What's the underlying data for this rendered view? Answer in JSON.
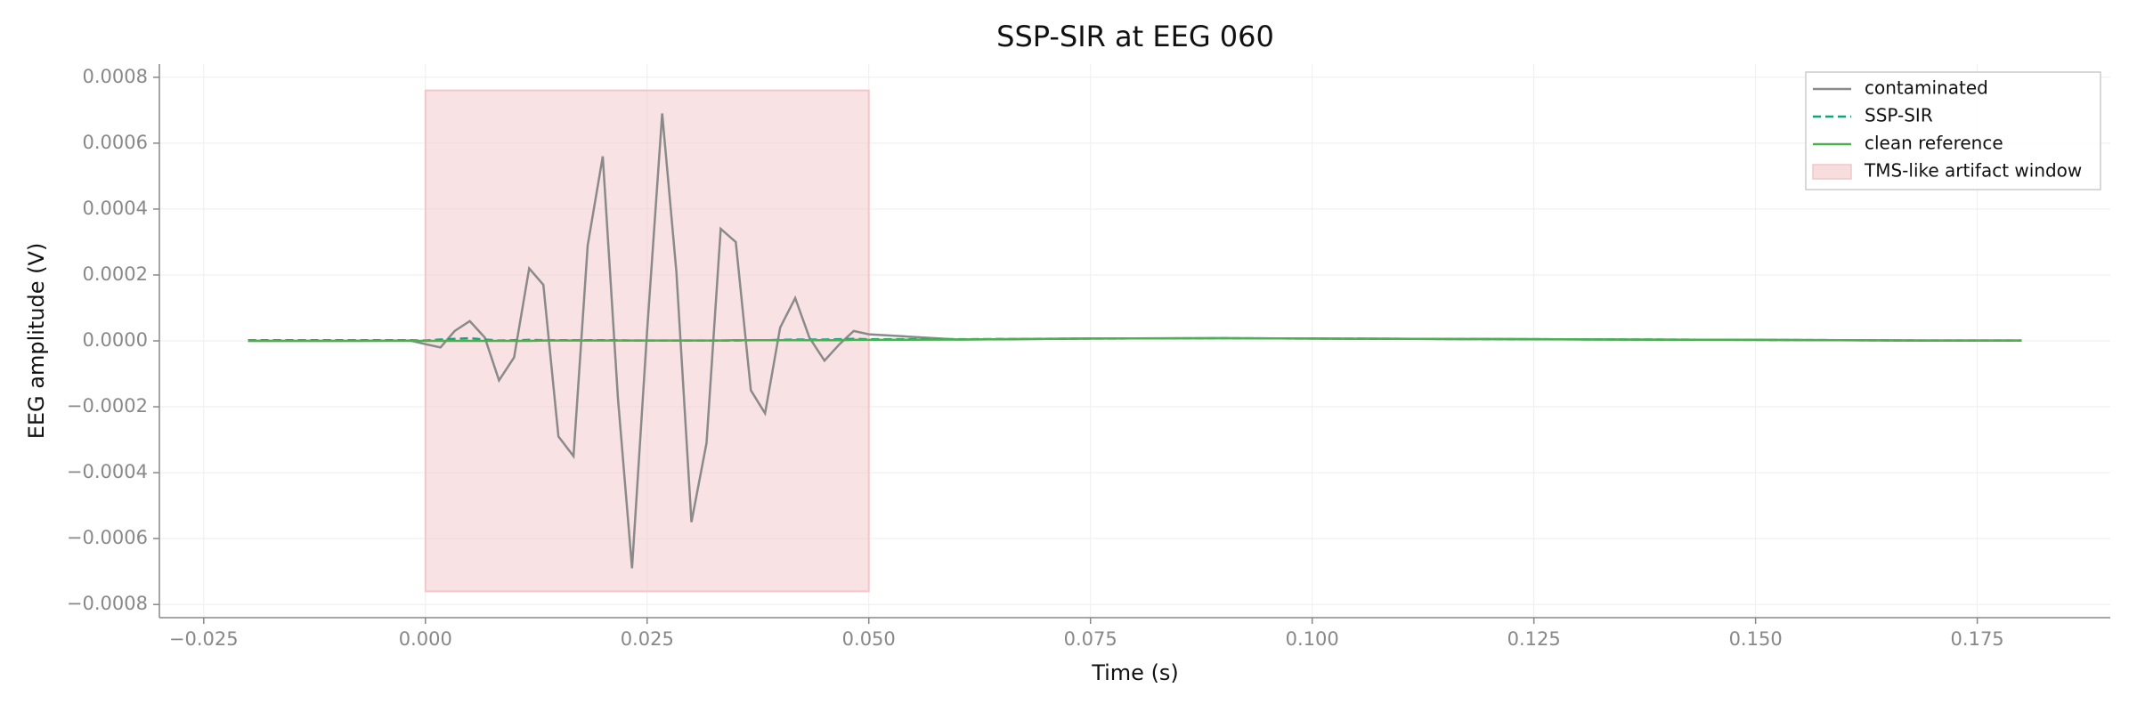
{
  "chart_data": {
    "type": "line",
    "title": "SSP-SIR at EEG 060",
    "xlabel": "Time (s)",
    "ylabel": "EEG amplitude (V)",
    "x": [
      -0.02,
      -0.01,
      -0.0017,
      0.0,
      0.0017,
      0.0033,
      0.005,
      0.0067,
      0.0083,
      0.01,
      0.0117,
      0.0133,
      0.015,
      0.0167,
      0.0183,
      0.02,
      0.0217,
      0.0233,
      0.025,
      0.0267,
      0.0283,
      0.03,
      0.0317,
      0.0333,
      0.035,
      0.0367,
      0.0383,
      0.04,
      0.0417,
      0.0433,
      0.045,
      0.0467,
      0.0483,
      0.05,
      0.06,
      0.075,
      0.09,
      0.1,
      0.125,
      0.15,
      0.17,
      0.18
    ],
    "series": [
      {
        "name": "contaminated",
        "color": "#8a8a8a",
        "linestyle": "solid",
        "values": [
          0,
          0,
          1e-06,
          -1e-05,
          -2e-05,
          3e-05,
          6e-05,
          1e-05,
          -0.00012,
          -5e-05,
          0.00022,
          0.00017,
          -0.00029,
          -0.00035,
          0.00029,
          0.00056,
          -0.00017,
          -0.00069,
          3e-05,
          0.00069,
          0.00021,
          -0.00055,
          -0.00031,
          0.00034,
          0.0003,
          -0.00015,
          -0.00022,
          4e-05,
          0.00013,
          1e-05,
          -6e-05,
          -1e-05,
          3e-05,
          2e-05,
          4e-06,
          7e-06,
          8e-06,
          7e-06,
          5e-06,
          3e-06,
          1e-06,
          1e-06
        ]
      },
      {
        "name": "SSP-SIR",
        "color": "#13a37a",
        "linestyle": "dashed",
        "values": [
          2e-06,
          2e-06,
          2e-06,
          1e-06,
          4e-06,
          6e-06,
          8e-06,
          4e-06,
          1e-06,
          2e-06,
          3e-06,
          2e-06,
          2e-06,
          2e-06,
          2e-06,
          2e-06,
          2e-06,
          1e-06,
          1e-06,
          1e-06,
          1e-06,
          1e-06,
          1e-06,
          1e-06,
          1e-06,
          2e-06,
          2e-06,
          3e-06,
          4e-06,
          4e-06,
          4e-06,
          5e-06,
          6e-06,
          5e-06,
          5e-06,
          7e-06,
          8e-06,
          7e-06,
          5e-06,
          3e-06,
          1e-06,
          1e-06
        ]
      },
      {
        "name": "clean reference",
        "color": "#4caf50",
        "linestyle": "solid",
        "values": [
          0,
          0,
          0,
          0,
          0,
          0,
          0,
          0,
          0,
          0,
          0,
          1e-06,
          1e-06,
          1e-06,
          1e-06,
          1e-06,
          1e-06,
          1e-06,
          1e-06,
          1e-06,
          1e-06,
          1e-06,
          1e-06,
          1e-06,
          2e-06,
          2e-06,
          2e-06,
          2e-06,
          2e-06,
          2e-06,
          2e-06,
          2e-06,
          3e-06,
          3e-06,
          4e-06,
          7e-06,
          8e-06,
          7e-06,
          5e-06,
          3e-06,
          1e-06,
          1e-06
        ]
      }
    ],
    "artifact_window": {
      "name": "TMS-like artifact window",
      "color": "#f4c6c9",
      "x": [
        0.0,
        0.05
      ],
      "y": [
        -0.00076,
        0.00076
      ]
    },
    "xlim": [
      -0.03,
      0.19
    ],
    "ylim": [
      -0.00084,
      0.00084
    ],
    "xticks": [
      {
        "value": -0.025,
        "label": "−0.025"
      },
      {
        "value": 0,
        "label": "0.000"
      },
      {
        "value": 0.025,
        "label": "0.025"
      },
      {
        "value": 0.05,
        "label": "0.050"
      },
      {
        "value": 0.075,
        "label": "0.075"
      },
      {
        "value": 0.1,
        "label": "0.100"
      },
      {
        "value": 0.125,
        "label": "0.125"
      },
      {
        "value": 0.15,
        "label": "0.150"
      },
      {
        "value": 0.175,
        "label": "0.175"
      }
    ],
    "yticks": [
      {
        "value": -0.0008,
        "label": "−0.0008"
      },
      {
        "value": -0.0006,
        "label": "−0.0006"
      },
      {
        "value": -0.0004,
        "label": "−0.0004"
      },
      {
        "value": -0.0002,
        "label": "−0.0002"
      },
      {
        "value": 0,
        "label": "0.0000"
      },
      {
        "value": 0.0002,
        "label": "0.0002"
      },
      {
        "value": 0.0004,
        "label": "0.0004"
      },
      {
        "value": 0.0006,
        "label": "0.0006"
      },
      {
        "value": 0.0008,
        "label": "0.0008"
      }
    ],
    "grid": true,
    "legend": "upper right"
  }
}
